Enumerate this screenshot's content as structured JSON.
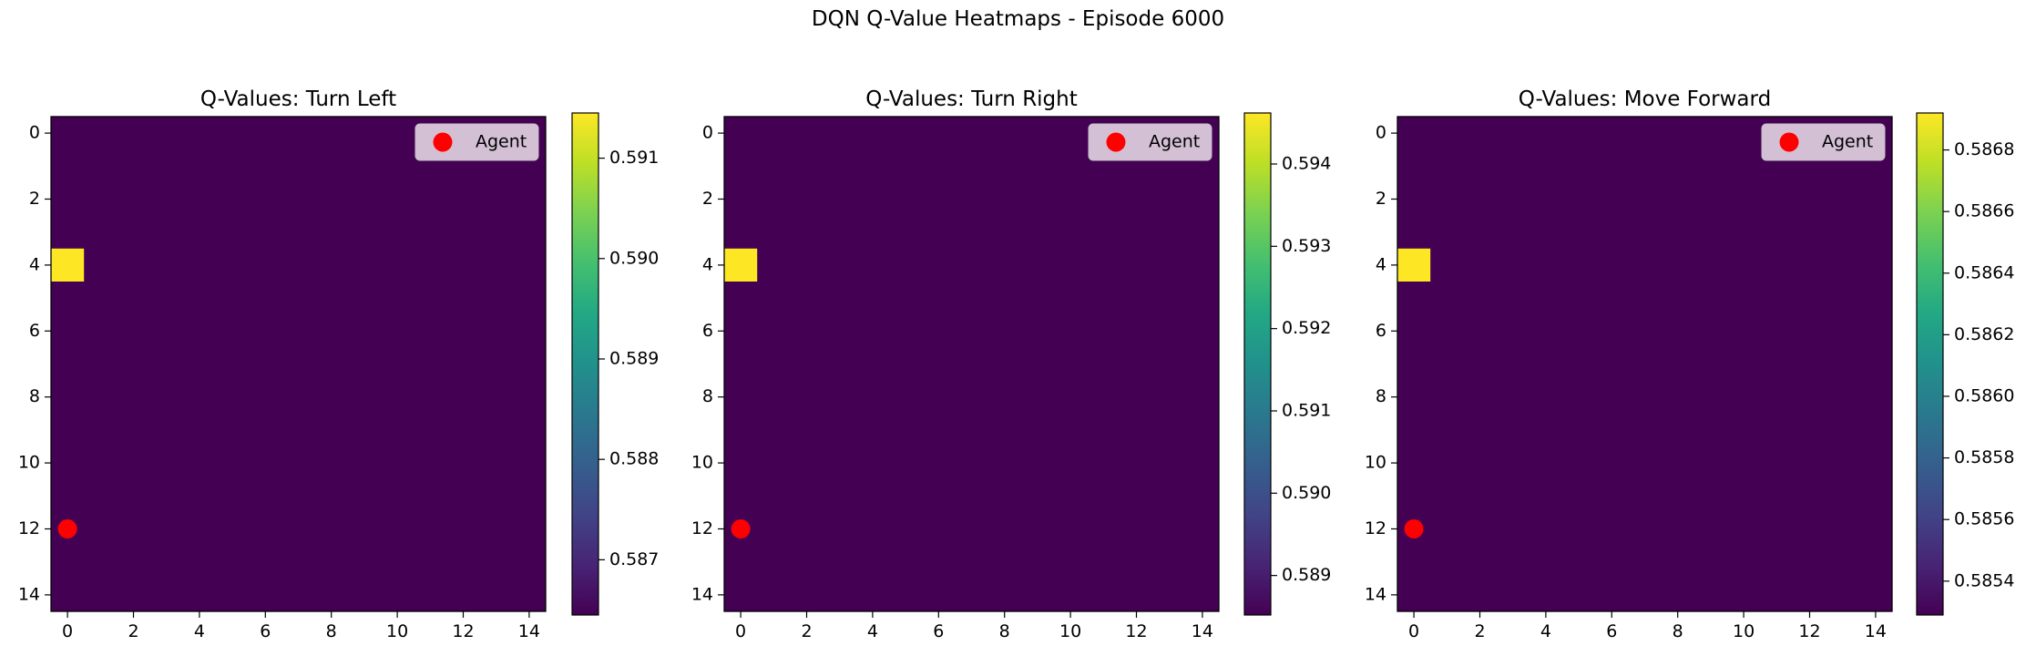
{
  "figure": {
    "title": "DQN Q-Value Heatmaps - Episode 6000"
  },
  "colors": {
    "viridis_low": "#440154",
    "viridis_high": "#fde725",
    "agent": "#ff0000",
    "legend_bg": "#dccbdc"
  },
  "chart_data": [
    {
      "type": "heatmap",
      "title": "Q-Values: Turn Left",
      "grid_size": [
        15,
        15
      ],
      "x_ticks": [
        0,
        2,
        4,
        6,
        8,
        10,
        12,
        14
      ],
      "y_ticks": [
        0,
        2,
        4,
        6,
        8,
        10,
        12,
        14
      ],
      "base_value": 0.58645,
      "hot_cells": [
        {
          "x": 0,
          "y": 4,
          "value": 0.59145
        }
      ],
      "vmin": 0.58645,
      "vmax": 0.59145,
      "colorbar_ticks": [
        0.587,
        0.588,
        0.589,
        0.59,
        0.591
      ],
      "colorbar_decimals": 3,
      "agent": {
        "x": 0,
        "y": 12
      },
      "legend": {
        "label": "Agent",
        "position": "upper-right"
      }
    },
    {
      "type": "heatmap",
      "title": "Q-Values: Turn Right",
      "grid_size": [
        15,
        15
      ],
      "x_ticks": [
        0,
        2,
        4,
        6,
        8,
        10,
        12,
        14
      ],
      "y_ticks": [
        0,
        2,
        4,
        6,
        8,
        10,
        12,
        14
      ],
      "base_value": 0.58852,
      "hot_cells": [
        {
          "x": 0,
          "y": 4,
          "value": 0.59462
        }
      ],
      "vmin": 0.58852,
      "vmax": 0.59462,
      "colorbar_ticks": [
        0.589,
        0.59,
        0.591,
        0.592,
        0.593,
        0.594
      ],
      "colorbar_decimals": 3,
      "agent": {
        "x": 0,
        "y": 12
      },
      "legend": {
        "label": "Agent",
        "position": "upper-right"
      }
    },
    {
      "type": "heatmap",
      "title": "Q-Values: Move Forward",
      "grid_size": [
        15,
        15
      ],
      "x_ticks": [
        0,
        2,
        4,
        6,
        8,
        10,
        12,
        14
      ],
      "y_ticks": [
        0,
        2,
        4,
        6,
        8,
        10,
        12,
        14
      ],
      "base_value": 0.58529,
      "hot_cells": [
        {
          "x": 0,
          "y": 4,
          "value": 0.58692
        }
      ],
      "vmin": 0.58529,
      "vmax": 0.58692,
      "colorbar_ticks": [
        0.5854,
        0.5856,
        0.5858,
        0.586,
        0.5862,
        0.5864,
        0.5866,
        0.5868
      ],
      "colorbar_decimals": 4,
      "agent": {
        "x": 0,
        "y": 12
      },
      "legend": {
        "label": "Agent",
        "position": "upper-right"
      }
    }
  ]
}
